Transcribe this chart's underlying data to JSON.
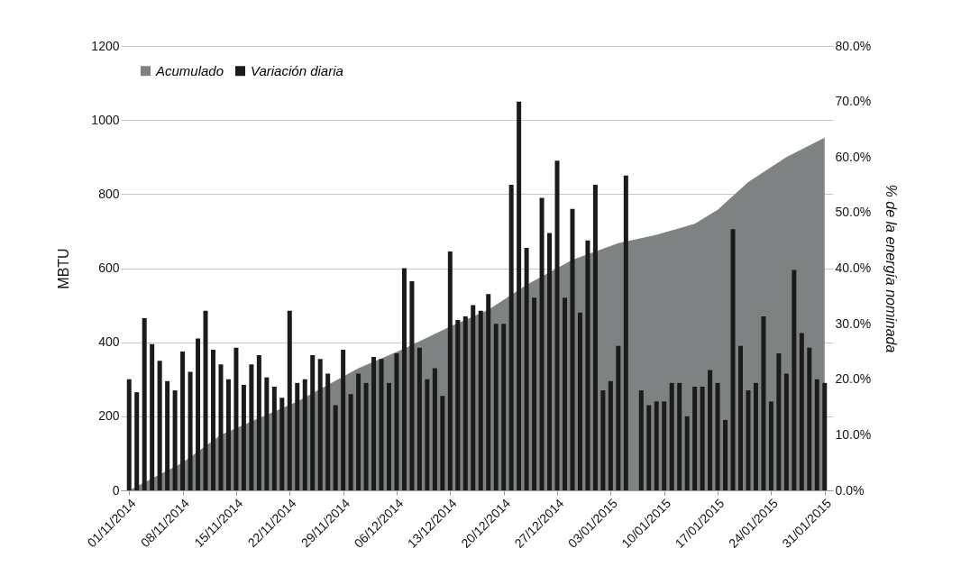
{
  "chart_data": {
    "type": "bar",
    "x": [
      "2014-11-01",
      "2014-11-02",
      "2014-11-03",
      "2014-11-04",
      "2014-11-05",
      "2014-11-06",
      "2014-11-07",
      "2014-11-08",
      "2014-11-09",
      "2014-11-10",
      "2014-11-11",
      "2014-11-12",
      "2014-11-13",
      "2014-11-14",
      "2014-11-15",
      "2014-11-16",
      "2014-11-17",
      "2014-11-18",
      "2014-11-19",
      "2014-11-20",
      "2014-11-21",
      "2014-11-22",
      "2014-11-23",
      "2014-11-24",
      "2014-11-25",
      "2014-11-26",
      "2014-11-27",
      "2014-11-28",
      "2014-11-29",
      "2014-11-30",
      "2014-12-01",
      "2014-12-02",
      "2014-12-03",
      "2014-12-04",
      "2014-12-05",
      "2014-12-06",
      "2014-12-07",
      "2014-12-08",
      "2014-12-09",
      "2014-12-10",
      "2014-12-11",
      "2014-12-12",
      "2014-12-13",
      "2014-12-14",
      "2014-12-15",
      "2014-12-16",
      "2014-12-17",
      "2014-12-18",
      "2014-12-19",
      "2014-12-20",
      "2014-12-21",
      "2014-12-22",
      "2014-12-23",
      "2014-12-24",
      "2014-12-25",
      "2014-12-26",
      "2014-12-27",
      "2014-12-28",
      "2014-12-29",
      "2014-12-30",
      "2014-12-31",
      "2015-01-01",
      "2015-01-02",
      "2015-01-03",
      "2015-01-04",
      "2015-01-05",
      "2015-01-06",
      "2015-01-07",
      "2015-01-08",
      "2015-01-09",
      "2015-01-10",
      "2015-01-11",
      "2015-01-12",
      "2015-01-13",
      "2015-01-14",
      "2015-01-15",
      "2015-01-16",
      "2015-01-17",
      "2015-01-18",
      "2015-01-19",
      "2015-01-20",
      "2015-01-21",
      "2015-01-22",
      "2015-01-23",
      "2015-01-24",
      "2015-01-25",
      "2015-01-26",
      "2015-01-27",
      "2015-01-28",
      "2015-01-29",
      "2015-01-30",
      "2015-01-31"
    ],
    "series": [
      {
        "name": "Acumulado",
        "type": "area",
        "axis": "y2",
        "color": "#7e8282",
        "x": [
          "2014-11-01",
          "2014-11-08",
          "2014-11-13",
          "2014-11-23",
          "2014-12-01",
          "2014-12-07",
          "2014-12-13",
          "2014-12-18",
          "2014-12-23",
          "2014-12-29",
          "2015-01-04",
          "2015-01-09",
          "2015-01-14",
          "2015-01-17",
          "2015-01-21",
          "2015-01-26",
          "2015-01-31"
        ],
        "values": [
          0,
          5,
          10,
          16,
          22,
          25.5,
          29.5,
          32.5,
          37,
          41.5,
          44.5,
          46,
          48,
          50.5,
          55.5,
          60,
          63.5
        ]
      },
      {
        "name": "Variación diaria",
        "color": "#1b1b1b",
        "values": [
          300,
          265,
          465,
          395,
          350,
          295,
          270,
          375,
          320,
          410,
          485,
          380,
          340,
          300,
          385,
          285,
          340,
          365,
          305,
          280,
          250,
          485,
          290,
          300,
          365,
          355,
          315,
          230,
          380,
          260,
          315,
          290,
          360,
          355,
          290,
          370,
          600,
          565,
          385,
          300,
          330,
          255,
          645,
          460,
          470,
          500,
          485,
          530,
          450,
          450,
          825,
          1050,
          655,
          520,
          790,
          695,
          890,
          520,
          760,
          480,
          675,
          825,
          270,
          295,
          390,
          850,
          0,
          270,
          230,
          240,
          240,
          290,
          290,
          200,
          280,
          280,
          325,
          290,
          190,
          705,
          390,
          270,
          290,
          470,
          240,
          370,
          315,
          595,
          425,
          385,
          300,
          290
        ]
      }
    ],
    "xlim": [
      "2014-10-31T12:00",
      "2015-01-31T12:00"
    ],
    "xticks": [
      {
        "value": "2014-11-01",
        "label": "01/11/2014"
      },
      {
        "value": "2014-11-08",
        "label": "08/11/2014"
      },
      {
        "value": "2014-11-15",
        "label": "15/11/2014"
      },
      {
        "value": "2014-11-22",
        "label": "22/11/2014"
      },
      {
        "value": "2014-11-29",
        "label": "29/11/2014"
      },
      {
        "value": "2014-12-06",
        "label": "06/12/2014"
      },
      {
        "value": "2014-12-13",
        "label": "13/12/2014"
      },
      {
        "value": "2014-12-20",
        "label": "20/12/2014"
      },
      {
        "value": "2014-12-27",
        "label": "27/12/2014"
      },
      {
        "value": "2015-01-03",
        "label": "03/01/2015"
      },
      {
        "value": "2015-01-10",
        "label": "10/01/2015"
      },
      {
        "value": "2015-01-17",
        "label": "17/01/2015"
      },
      {
        "value": "2015-01-24",
        "label": "24/01/2015"
      },
      {
        "value": "2015-01-31",
        "label": "31/01/2015"
      }
    ],
    "ylabel": "MBTU",
    "ylim": [
      0,
      1200
    ],
    "yticks": [
      0,
      200,
      400,
      600,
      800,
      1000,
      1200
    ],
    "y2label": "% de la energía nominada",
    "y2lim": [
      0,
      80
    ],
    "y2ticks": [
      {
        "value": 0,
        "label": "0.0%"
      },
      {
        "value": 10,
        "label": "10.0%"
      },
      {
        "value": 20,
        "label": "20.0%"
      },
      {
        "value": 30,
        "label": "30.0%"
      },
      {
        "value": 40,
        "label": "40.0%"
      },
      {
        "value": 50,
        "label": "50.0%"
      },
      {
        "value": 60,
        "label": "60.0%"
      },
      {
        "value": 70,
        "label": "70.0%"
      },
      {
        "value": 80,
        "label": "80.0%"
      }
    ],
    "grid": "y",
    "legend": "top left"
  }
}
